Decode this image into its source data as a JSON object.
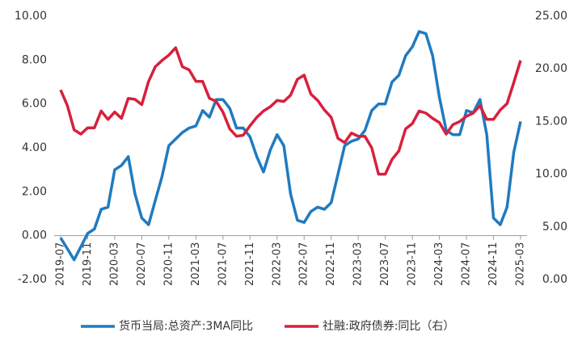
{
  "chart_data": {
    "type": "line",
    "categories": [
      "2019-07",
      null,
      null,
      null,
      "2019-11",
      null,
      null,
      null,
      "2020-03",
      null,
      null,
      null,
      "2020-07",
      null,
      null,
      null,
      "2020-11",
      null,
      null,
      null,
      "2021-03",
      null,
      null,
      null,
      "2021-07",
      null,
      null,
      null,
      "2021-11",
      null,
      null,
      null,
      "2022-03",
      null,
      null,
      null,
      "2022-07",
      null,
      null,
      null,
      "2022-11",
      null,
      null,
      null,
      "2023-03",
      null,
      null,
      null,
      "2023-07",
      null,
      null,
      null,
      "2023-11",
      null,
      null,
      null,
      "2024-03",
      null,
      null,
      null,
      "2024-07",
      null,
      null,
      null,
      "2024-11",
      null,
      null,
      null,
      "2025-03"
    ],
    "series": [
      {
        "name": "货币当局:总资产:3MA同比",
        "color": "#1f7bc0",
        "axis": "y",
        "values": [
          -0.1,
          -0.6,
          -1.1,
          -0.5,
          0.1,
          0.3,
          1.2,
          1.3,
          3.0,
          3.2,
          3.6,
          1.9,
          0.8,
          0.5,
          1.6,
          2.7,
          4.1,
          4.4,
          4.7,
          4.9,
          5.0,
          5.7,
          5.4,
          6.2,
          6.2,
          5.8,
          4.9,
          4.9,
          4.5,
          3.6,
          2.9,
          3.9,
          4.6,
          4.1,
          1.9,
          0.7,
          0.6,
          1.1,
          1.3,
          1.2,
          1.5,
          2.8,
          4.1,
          4.3,
          4.4,
          4.8,
          5.7,
          6.0,
          6.0,
          7.0,
          7.3,
          8.2,
          8.6,
          9.3,
          9.2,
          8.2,
          6.3,
          4.8,
          4.6,
          4.6,
          5.7,
          5.6,
          6.2,
          4.6,
          0.8,
          0.5,
          1.3,
          3.8,
          5.2
        ]
      },
      {
        "name": "社融:政府债券:同比（右）",
        "color": "#d6213d",
        "axis": "y2",
        "values": [
          18.0,
          16.5,
          14.2,
          13.8,
          14.4,
          14.4,
          16.0,
          15.2,
          15.9,
          15.3,
          17.2,
          17.1,
          16.6,
          18.8,
          20.2,
          20.8,
          21.3,
          22.0,
          20.2,
          19.9,
          18.8,
          18.8,
          17.2,
          16.9,
          15.9,
          14.3,
          13.6,
          13.7,
          14.6,
          15.4,
          16.0,
          16.4,
          17.0,
          16.9,
          17.5,
          19.0,
          19.4,
          17.6,
          17.0,
          16.1,
          15.4,
          13.4,
          13.0,
          13.9,
          13.6,
          13.6,
          12.5,
          10.0,
          10.0,
          11.4,
          12.2,
          14.3,
          14.8,
          16.0,
          15.8,
          15.3,
          14.9,
          13.8,
          14.7,
          15.0,
          15.5,
          15.8,
          16.5,
          15.2,
          15.2,
          16.1,
          16.7,
          18.7,
          20.8
        ]
      }
    ],
    "ylim": [
      -2,
      10
    ],
    "yticks": [
      {
        "value": -2,
        "label": "-2.00"
      },
      {
        "value": 0,
        "label": "0.00"
      },
      {
        "value": 2,
        "label": "2.00"
      },
      {
        "value": 4,
        "label": "4.00"
      },
      {
        "value": 6,
        "label": "6.00"
      },
      {
        "value": 8,
        "label": "8.00"
      },
      {
        "value": 10,
        "label": "10.00"
      }
    ],
    "y2lim": [
      0,
      25
    ],
    "y2ticks": [
      {
        "value": 0,
        "label": "0.00"
      },
      {
        "value": 5,
        "label": "5.00"
      },
      {
        "value": 10,
        "label": "10.00"
      },
      {
        "value": 15,
        "label": "15.00"
      },
      {
        "value": 20,
        "label": "20.00"
      },
      {
        "value": 25,
        "label": "25.00"
      }
    ],
    "grid": false,
    "legend": "bottom"
  }
}
